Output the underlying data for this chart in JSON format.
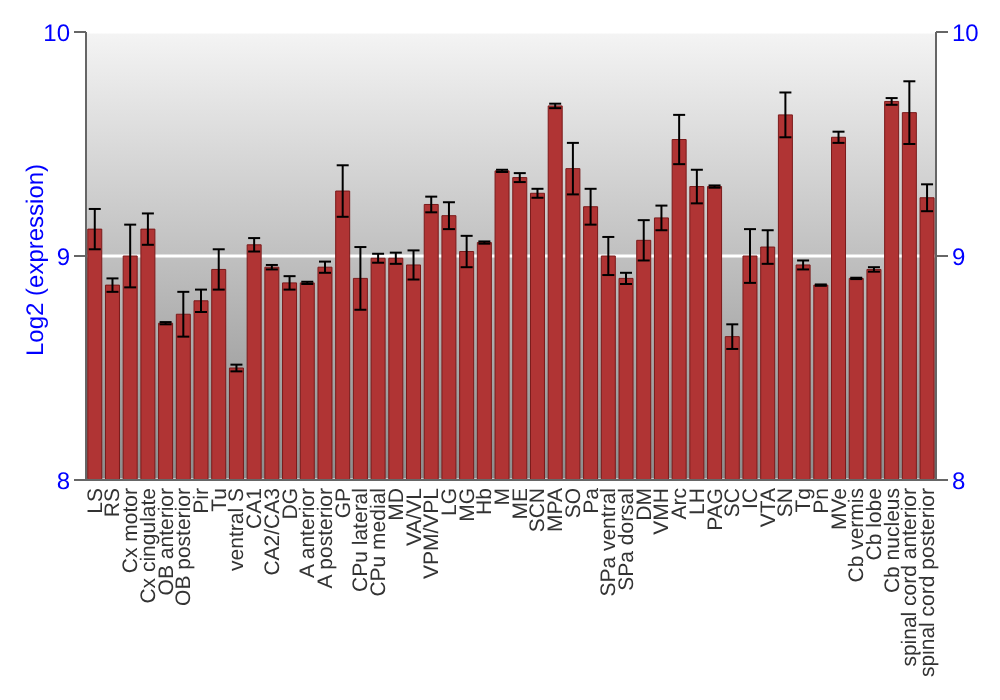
{
  "chart_data": {
    "type": "bar",
    "ylabel": "Log2 (expression)",
    "categories": [
      "LS",
      "RS",
      "Cx motor",
      "Cx cingulate",
      "OB anterior",
      "OB posterior",
      "Pir",
      "Tu",
      "ventral S",
      "CA1",
      "CA2/CA3",
      "DG",
      "A anterior",
      "A posterior",
      "GP",
      "CPu lateral",
      "CPu medial",
      "MD",
      "VA/VL",
      "VPM/VPL",
      "LG",
      "MG",
      "Hb",
      "M",
      "ME",
      "SCN",
      "MPA",
      "SO",
      "Pa",
      "SPa ventral",
      "SPa dorsal",
      "DM",
      "VMH",
      "Arc",
      "LH",
      "PAG",
      "SC",
      "IC",
      "VTA",
      "SN",
      "Tg",
      "Pn",
      "MVe",
      "Cb vermis",
      "Cb lobe",
      "Cb nucleus",
      "spinal cord anterior",
      "spinal cord posterior"
    ],
    "values": [
      9.12,
      8.87,
      9.0,
      9.12,
      8.7,
      8.74,
      8.8,
      8.94,
      8.5,
      9.05,
      8.95,
      8.88,
      8.88,
      8.95,
      9.29,
      8.9,
      8.99,
      8.99,
      8.96,
      9.23,
      9.18,
      9.02,
      9.06,
      9.38,
      9.35,
      9.28,
      9.67,
      9.39,
      9.22,
      9.0,
      8.9,
      9.07,
      9.17,
      9.52,
      9.31,
      9.31,
      8.64,
      9.0,
      9.04,
      9.63,
      8.96,
      8.87,
      9.53,
      8.9,
      8.94,
      9.69,
      9.64,
      9.26
    ],
    "errors": [
      0.09,
      0.03,
      0.14,
      0.07,
      0.005,
      0.1,
      0.05,
      0.09,
      0.015,
      0.03,
      0.01,
      0.03,
      0.005,
      0.025,
      0.115,
      0.14,
      0.02,
      0.025,
      0.065,
      0.035,
      0.06,
      0.07,
      0.005,
      0.005,
      0.02,
      0.02,
      0.01,
      0.115,
      0.08,
      0.085,
      0.025,
      0.09,
      0.055,
      0.11,
      0.075,
      0.005,
      0.055,
      0.12,
      0.075,
      0.1,
      0.02,
      0.003,
      0.025,
      0.003,
      0.01,
      0.015,
      0.14,
      0.06
    ],
    "color": "#b03434",
    "ylim": [
      8,
      10
    ],
    "yticks": [
      8,
      9,
      10
    ],
    "y2lim": [
      8,
      10
    ],
    "y2ticks": [
      8,
      9,
      10
    ],
    "grid": "y"
  }
}
